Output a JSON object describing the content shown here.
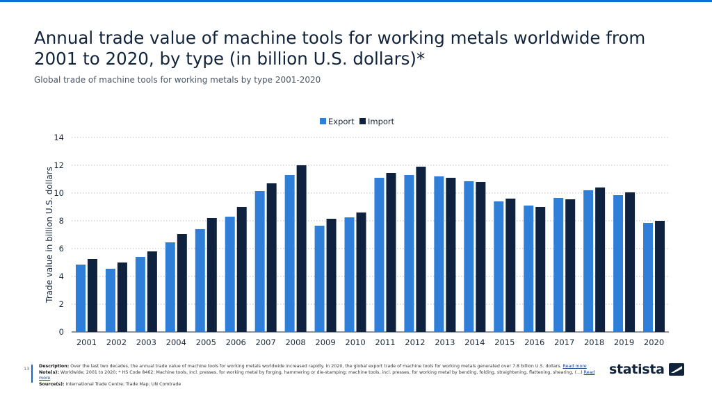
{
  "header": {
    "title": "Annual trade value of machine tools for working metals worldwide from 2001 to 2020, by type (in billion U.S. dollars)*",
    "subtitle": "Global trade of machine tools for working metals by type 2001-2020"
  },
  "footer": {
    "description_label": "Description:",
    "description_text": "Over the last two decades, the annual trade value of machine tools for working metals worldwide increased rapidly. In 2020, the global export trade of machine tools for working metals generated over 7.8 billion U.S. dollars.",
    "description_link": "Read more",
    "notes_label": "Note(s):",
    "notes_text": "Worldwide; 2001 to 2020; * HS Code 8462: Machine tools, incl. presses, for working metal by forging, hammering or die-stamping; machine tools, incl. presses, for working metal by bending, folding, straightening, flattening, shearing, (...)",
    "notes_link": "Read more",
    "source_label": "Source(s):",
    "source_text": "International Trade Centre; Trade Map; UN Comtrade",
    "page_number": "13"
  },
  "brand": {
    "name": "statista"
  },
  "colors": {
    "export": "#2f7ed8",
    "import": "#0e2240",
    "grid": "#b8bec6",
    "text": "#1b2a3a",
    "brand": "#0f6fd1"
  },
  "chart_data": {
    "type": "bar",
    "title": "Annual trade value of machine tools for working metals worldwide from 2001 to 2020, by type (in billion U.S. dollars)*",
    "xlabel": "",
    "ylabel": "Trade value in billion U.S. dollars",
    "ylim": [
      0,
      14
    ],
    "yticks": [
      0,
      2,
      4,
      6,
      8,
      10,
      12,
      14
    ],
    "grid": true,
    "legend": "top-center",
    "categories": [
      "2001",
      "2002",
      "2003",
      "2004",
      "2005",
      "2006",
      "2007",
      "2008",
      "2009",
      "2010",
      "2011",
      "2012",
      "2013",
      "2014",
      "2015",
      "2016",
      "2017",
      "2018",
      "2019",
      "2020"
    ],
    "series": [
      {
        "name": "Export",
        "values": [
          4.85,
          4.55,
          5.4,
          6.45,
          7.4,
          8.3,
          10.15,
          11.3,
          7.65,
          8.25,
          11.1,
          11.3,
          11.2,
          10.85,
          9.4,
          9.1,
          9.65,
          10.2,
          9.85,
          7.85
        ]
      },
      {
        "name": "Import",
        "values": [
          5.25,
          5.0,
          5.8,
          7.05,
          8.2,
          9.0,
          10.7,
          12.0,
          8.15,
          8.6,
          11.45,
          11.9,
          11.1,
          10.8,
          9.6,
          9.0,
          9.55,
          10.4,
          10.05,
          8.0
        ]
      }
    ]
  }
}
